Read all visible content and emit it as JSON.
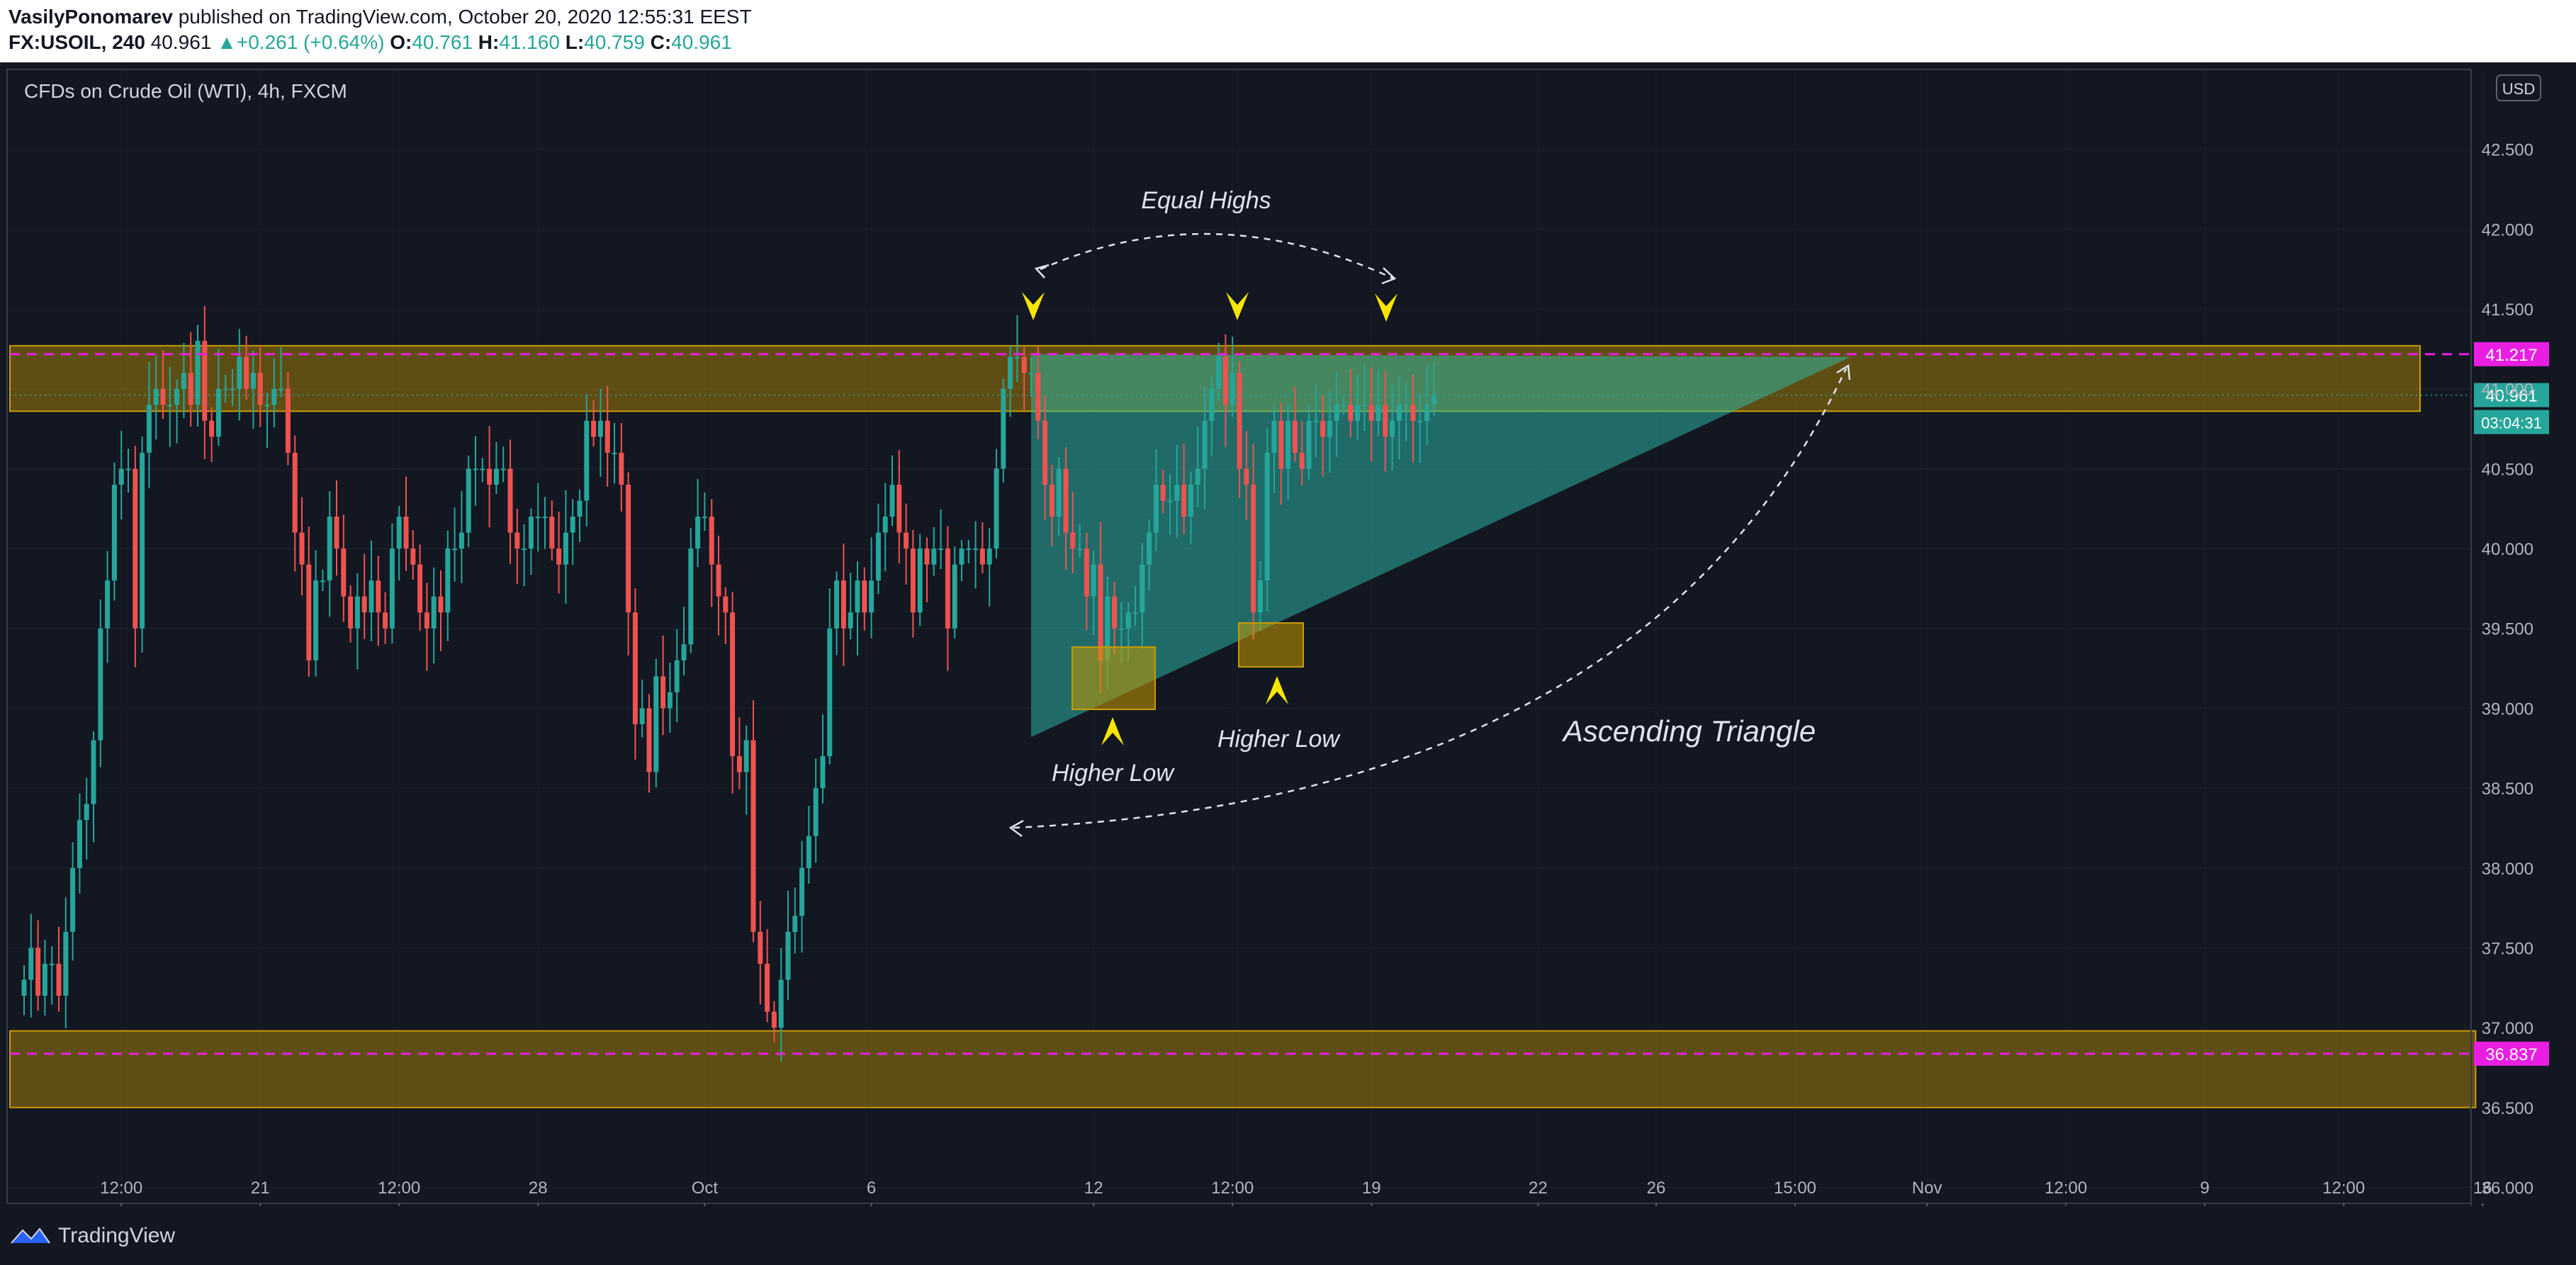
{
  "header": {
    "author": "VasilyPonomarev",
    "published_text": "published on TradingView.com, October 20, 2020 12:55:31 EEST",
    "symbol": "FX:USOIL, 240",
    "last": "40.961",
    "change": "+0.261 (+0.64%)",
    "o_label": "O:",
    "o": "40.761",
    "h_label": "H:",
    "h": "41.160",
    "l_label": "L:",
    "l": "40.759",
    "c_label": "C:",
    "c": "40.961"
  },
  "footer": {
    "brand": "TradingView",
    "logo_icon": "tradingview-logo-icon"
  },
  "chart_data": {
    "type": "candlestick",
    "title": "CFDs on Crude Oil (WTI), 4h, FXCM",
    "currency": "USD",
    "ylim": [
      35.9,
      43.0
    ],
    "y_ticks": [
      "36.000",
      "36.500",
      "37.000",
      "37.500",
      "38.000",
      "38.500",
      "39.000",
      "39.500",
      "40.000",
      "40.500",
      "41.000",
      "41.500",
      "42.000",
      "42.500"
    ],
    "x_ticks": [
      {
        "label": "12:00",
        "bar": 14
      },
      {
        "label": "21",
        "bar": 34
      },
      {
        "label": "12:00",
        "bar": 54
      },
      {
        "label": "28",
        "bar": 74
      },
      {
        "label": "Oct",
        "bar": 98
      },
      {
        "label": "6",
        "bar": 122
      },
      {
        "label": "12",
        "bar": 154
      },
      {
        "label": "12:00",
        "bar": 174
      },
      {
        "label": "19",
        "bar": 194
      },
      {
        "label": "22",
        "bar": 218
      },
      {
        "label": "26",
        "bar": 235
      },
      {
        "label": "15:00",
        "bar": 255
      },
      {
        "label": "Nov",
        "bar": 274
      },
      {
        "label": "12:00",
        "bar": 294
      },
      {
        "label": "9",
        "bar": 314
      },
      {
        "label": "12:00",
        "bar": 334
      },
      {
        "label": "16",
        "bar": 354
      }
    ],
    "bar_count": 356,
    "price_labels": [
      {
        "value": 41.217,
        "text": "41.217",
        "color": "#e91ee3"
      },
      {
        "value": 40.961,
        "text": "40.961",
        "color": "#26a69a"
      },
      {
        "value": 36.837,
        "text": "36.837",
        "color": "#e91ee3"
      }
    ],
    "countdown": "03:04:31",
    "annotations": [
      {
        "text": "Equal Highs"
      },
      {
        "text": "Higher Low"
      },
      {
        "text": "Higher Low"
      },
      {
        "text": "Ascending Triangle"
      }
    ],
    "zones": [
      {
        "from": 40.86,
        "to": 41.27,
        "bar_end": 345
      },
      {
        "from": 36.5,
        "to": 36.98,
        "bar_end": 353
      }
    ],
    "triangle": {
      "apex_bar": 263,
      "apex": 41.2,
      "start_bar": 145,
      "top": 41.217,
      "bottom": 38.82
    },
    "colors": {
      "up": "#26a69a",
      "down": "#ef5350",
      "zone": "#c79a00",
      "level": "#e91ee3",
      "triangle": "#2dbfac",
      "arrow": "#f7e400"
    },
    "closes": [
      37.3,
      37.5,
      37.2,
      37.4,
      37.4,
      37.2,
      37.6,
      38.0,
      38.3,
      38.4,
      38.8,
      39.5,
      39.8,
      40.4,
      40.5,
      40.5,
      39.5,
      40.6,
      40.9,
      41.0,
      40.9,
      40.9,
      41.0,
      41.1,
      40.9,
      41.3,
      40.8,
      40.7,
      41.0,
      41.0,
      41.0,
      41.2,
      41.0,
      41.1,
      40.9,
      40.9,
      41.0,
      41.0,
      40.6,
      40.1,
      39.9,
      39.3,
      39.8,
      39.8,
      40.2,
      40.0,
      39.7,
      39.5,
      39.7,
      39.6,
      39.8,
      39.6,
      39.5,
      40.0,
      40.2,
      40.0,
      39.9,
      39.6,
      39.5,
      39.7,
      39.6,
      40.0,
      40.0,
      40.1,
      40.5,
      40.5,
      40.5,
      40.4,
      40.5,
      40.5,
      40.1,
      40.0,
      40.0,
      40.2,
      40.2,
      40.2,
      40.0,
      39.9,
      40.1,
      40.2,
      40.3,
      40.8,
      40.7,
      40.8,
      40.6,
      40.6,
      40.4,
      39.6,
      38.9,
      39.0,
      38.6,
      39.2,
      39.0,
      39.1,
      39.3,
      39.4,
      40.0,
      40.2,
      40.2,
      39.9,
      39.7,
      39.6,
      38.7,
      38.6,
      38.8,
      37.6,
      37.4,
      37.1,
      37.0,
      37.3,
      37.6,
      37.7,
      38.0,
      38.2,
      38.5,
      38.7,
      39.5,
      39.8,
      39.5,
      39.6,
      39.8,
      39.6,
      39.8,
      40.1,
      40.2,
      40.4,
      40.1,
      40.0,
      39.6,
      40.0,
      39.9,
      40.0,
      40.0,
      39.5,
      39.9,
      40.0,
      40.0,
      40.0,
      39.9,
      40.0,
      40.5,
      41.0,
      41.2,
      41.2,
      41.1,
      41.1,
      40.8,
      40.4,
      40.2,
      40.5,
      40.1,
      40.0,
      40.0,
      39.7,
      39.9,
      39.3,
      39.7,
      39.5,
      39.5,
      39.6,
      39.6,
      39.9,
      40.1,
      40.4,
      40.3,
      40.3,
      40.4,
      40.2,
      40.4,
      40.5,
      40.8,
      41.0,
      41.2,
      40.9,
      41.1,
      40.5,
      40.4,
      39.6,
      39.8,
      40.6,
      40.8,
      40.5,
      40.8,
      40.6,
      40.5,
      40.8,
      40.8,
      40.7,
      40.8,
      40.9,
      40.9,
      40.8,
      40.9,
      40.9,
      40.8,
      40.9,
      40.7,
      40.8,
      40.9,
      40.9,
      40.8,
      40.8,
      40.9,
      40.96
    ]
  }
}
